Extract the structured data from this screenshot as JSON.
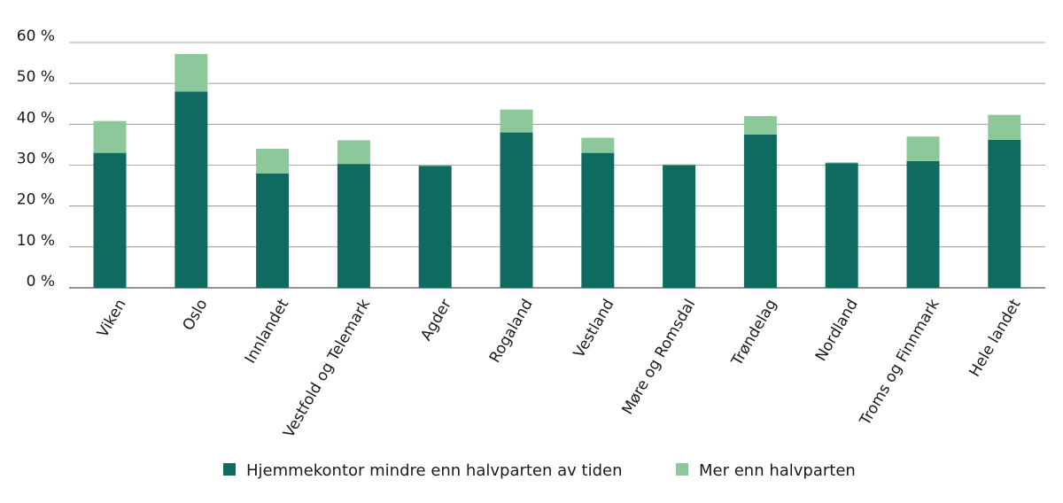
{
  "chart_data": {
    "type": "bar",
    "stacked": true,
    "title": "",
    "xlabel": "",
    "ylabel": "",
    "ylim": [
      0,
      60
    ],
    "yticks": [
      0,
      10,
      20,
      30,
      40,
      50,
      60
    ],
    "ytick_labels": [
      "0 %",
      "10 %",
      "20 %",
      "30 %",
      "40 %",
      "50 %",
      "60 %"
    ],
    "grid": true,
    "legend_position": "bottom",
    "categories": [
      "Viken",
      "Oslo",
      "Innlandet",
      "Vestfold og Telemark",
      "Agder",
      "Rogaland",
      "Vestland",
      "Møre og Romsdal",
      "Trøndelag",
      "Nordland",
      "Troms og Finnmark",
      "Hele landet"
    ],
    "series": [
      {
        "name": "Hjemmekontor mindre enn halvparten av tiden",
        "color": "#0f6b5f",
        "values": [
          33,
          48,
          28,
          30.3,
          29.8,
          38,
          33,
          30,
          37.5,
          30.5,
          31,
          36.2
        ]
      },
      {
        "name": "Mer enn halvparten",
        "color": "#8cc89a",
        "values": [
          7.8,
          9.2,
          6,
          5.8,
          0.2,
          5.6,
          3.7,
          0.2,
          4.5,
          0.2,
          6,
          6.1
        ]
      }
    ]
  }
}
